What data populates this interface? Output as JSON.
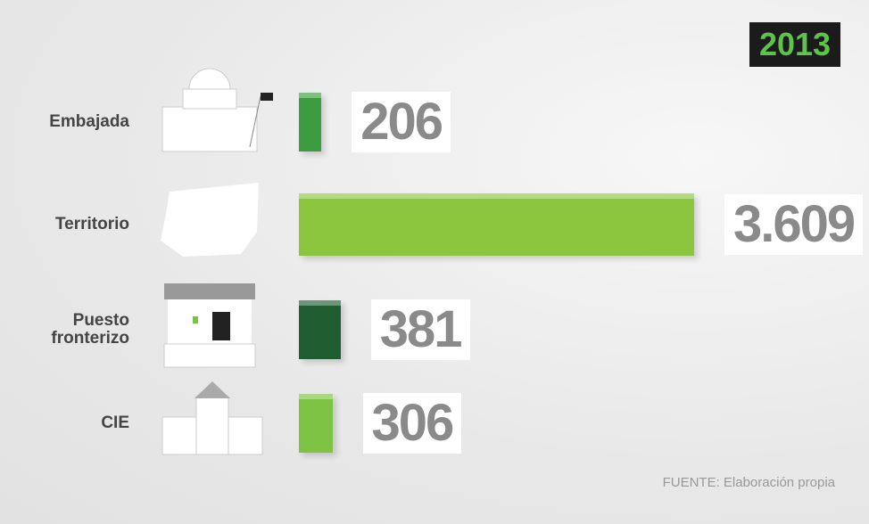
{
  "chart_data": {
    "type": "bar",
    "orientation": "horizontal",
    "title": "2013",
    "categories": [
      "Embajada",
      "Territorio",
      "Puesto fronterizo",
      "CIE"
    ],
    "values": [
      206,
      3609,
      381,
      306
    ],
    "value_labels": [
      "206",
      "3.609",
      "381",
      "306"
    ],
    "colors": [
      "#3d9b40",
      "#8cc63f",
      "#1f5c2f",
      "#7dc242"
    ],
    "source": "FUENTE: Elaboración propia"
  }
}
